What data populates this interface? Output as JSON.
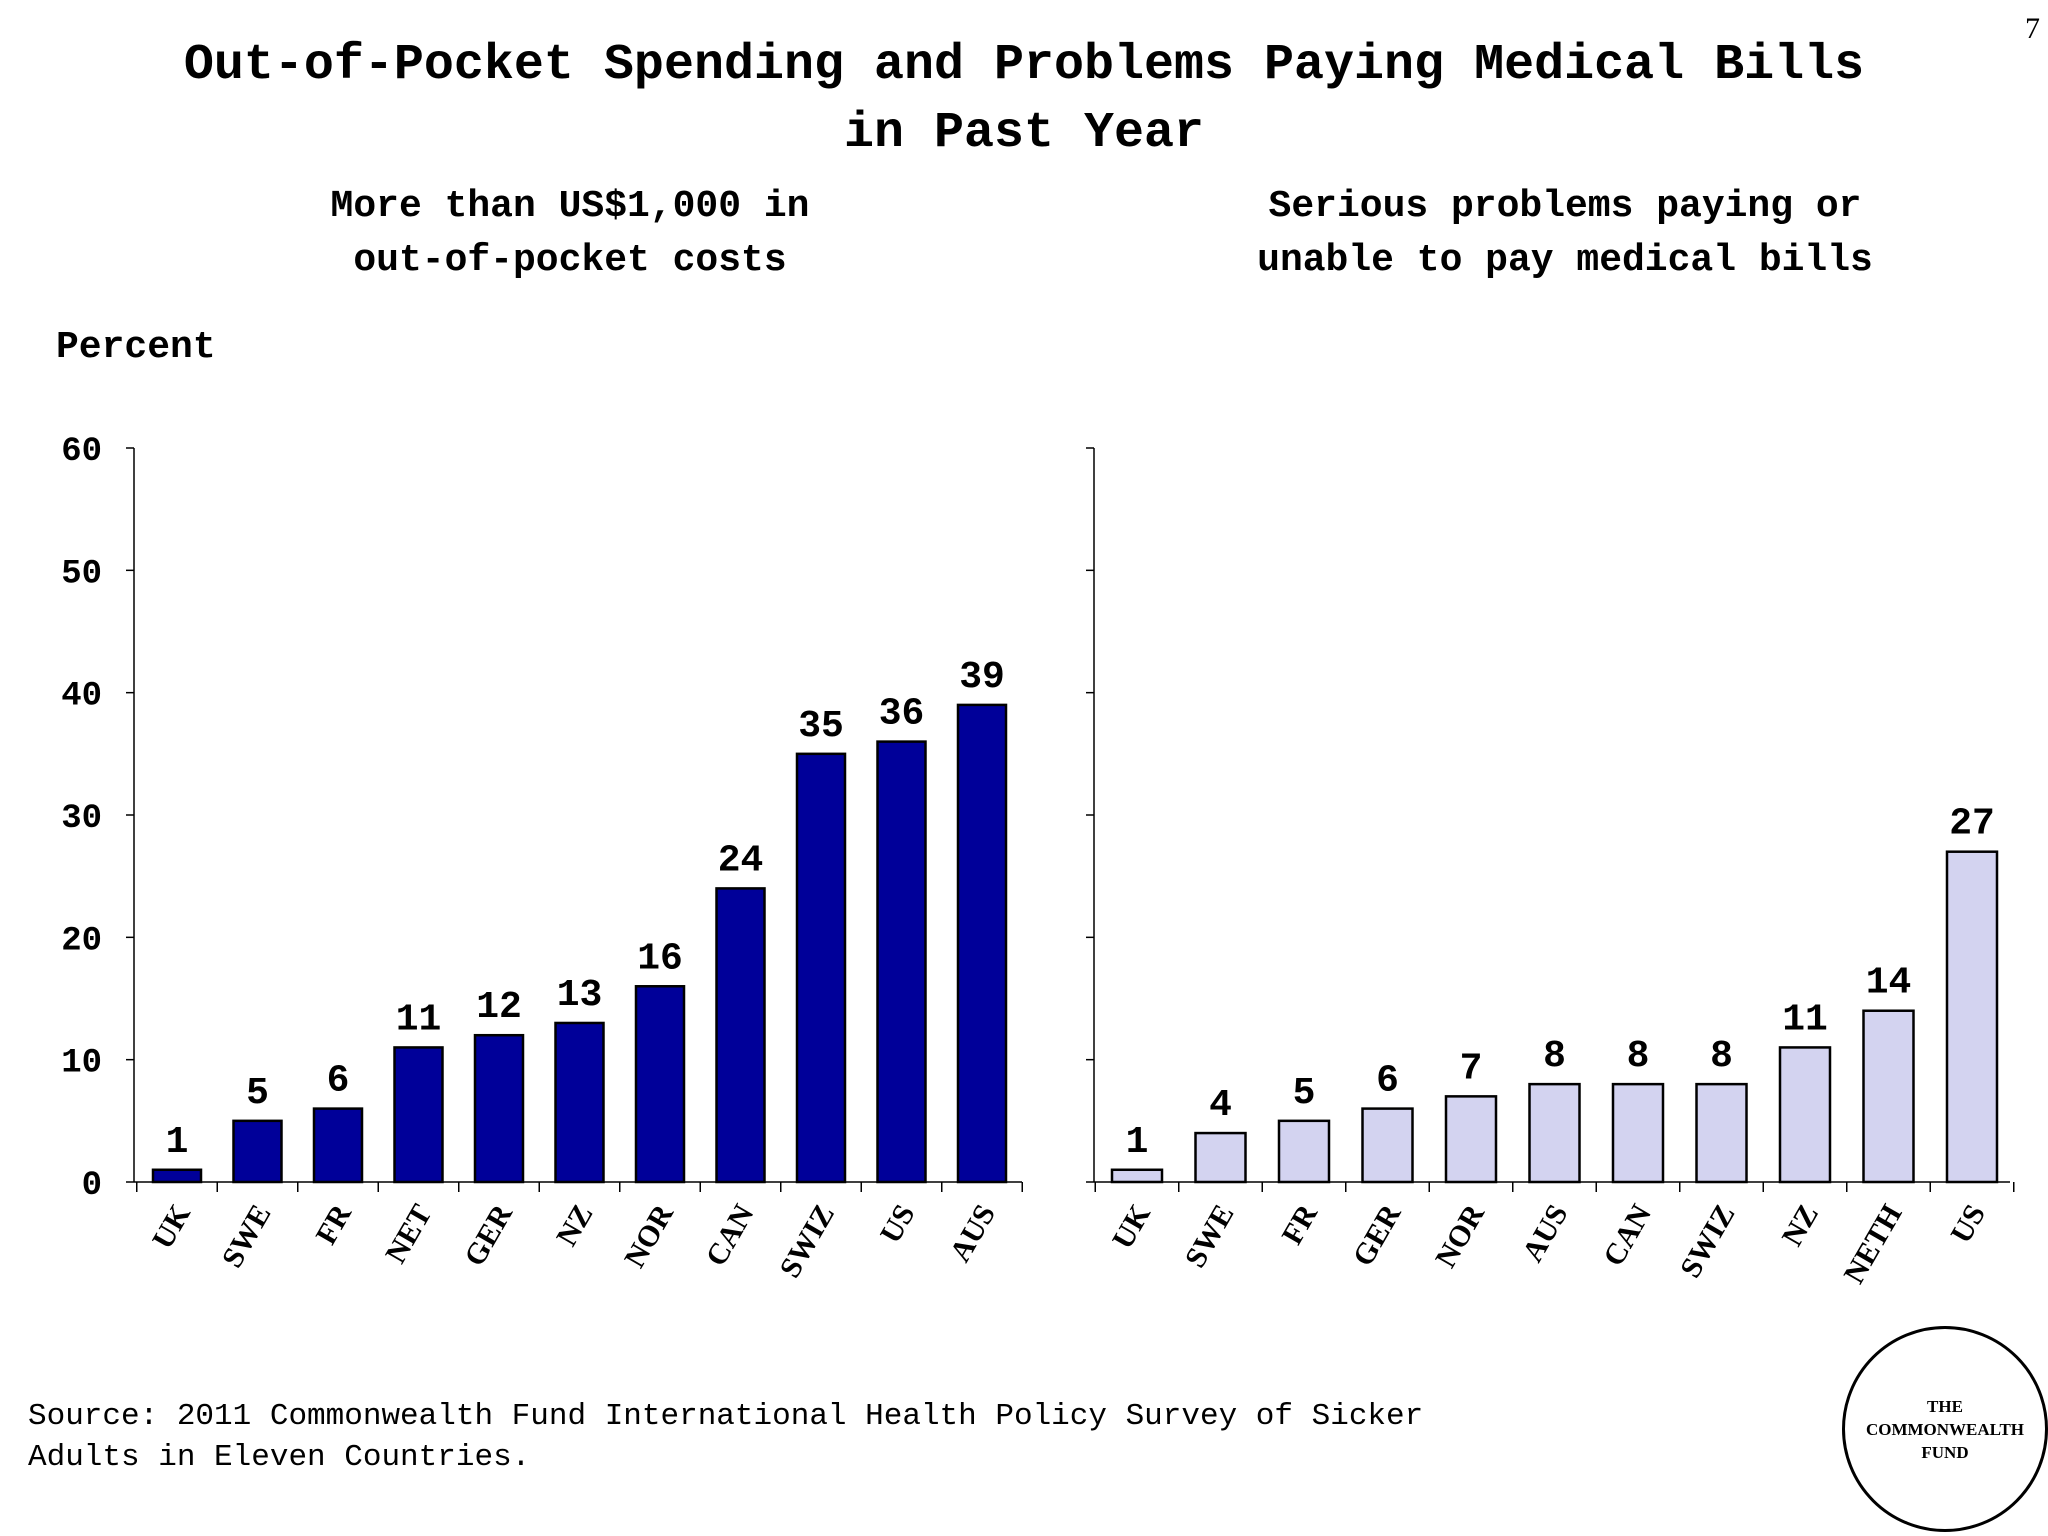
{
  "page_number": "7",
  "title_line1": "Out-of-Pocket Spending and Problems Paying Medical Bills",
  "title_line2": "in Past Year",
  "ylabel": "Percent",
  "source_text": "Source: 2011 Commonwealth Fund International Health Policy Survey of Sicker\nAdults in Eleven Countries.",
  "logo_text": "THE\nCOMMONWEALTH\nFUND",
  "colors": {
    "left_bars": "#000099",
    "right_bars": "#d3d3f0",
    "stroke": "#000000"
  },
  "chart_data": [
    {
      "type": "bar",
      "title": "More than US$1,000 in\nout-of-pocket costs",
      "title_line1": "More than US$1,000 in",
      "title_line2": "out-of-pocket costs",
      "ylabel": "Percent",
      "ylim": [
        0,
        60
      ],
      "yticks": [
        0,
        10,
        20,
        30,
        40,
        50,
        60
      ],
      "categories": [
        "UK",
        "SWE",
        "FR",
        "NET",
        "GER",
        "NZ",
        "NOR",
        "CAN",
        "SWIZ",
        "US",
        "AUS"
      ],
      "values": [
        1,
        5,
        6,
        11,
        12,
        13,
        16,
        24,
        35,
        36,
        39
      ],
      "grid": false
    },
    {
      "type": "bar",
      "title": "Serious problems paying or\nunable to pay medical bills",
      "title_line1": "Serious problems paying or",
      "title_line2": "unable to pay medical bills",
      "ylim": [
        0,
        60
      ],
      "categories": [
        "UK",
        "SWE",
        "FR",
        "GER",
        "NOR",
        "AUS",
        "CAN",
        "SWIZ",
        "NZ",
        "NETH",
        "US"
      ],
      "values": [
        1,
        4,
        5,
        6,
        7,
        8,
        8,
        8,
        11,
        14,
        27
      ],
      "grid": false
    }
  ]
}
